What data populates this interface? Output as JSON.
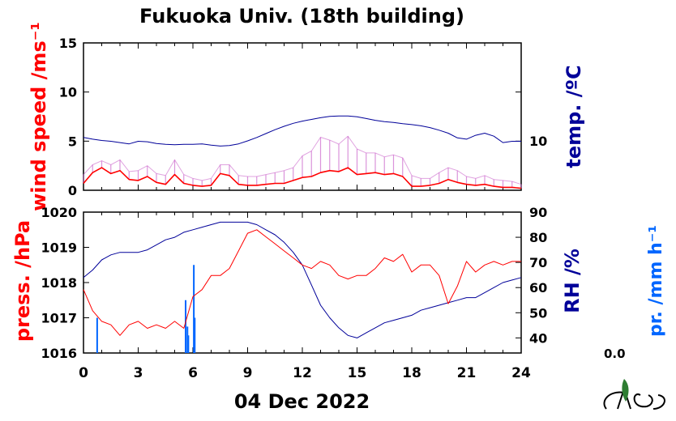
{
  "title": "Fukuoka Univ. (18th building)",
  "date": "04 Dec 2022",
  "precip_current": "0.0",
  "colors": {
    "wind": "#ff0000",
    "wind_gust": "#cc66cc",
    "temperature": "#000099",
    "pressure": "#ff0000",
    "humidity": "#000099",
    "precipitation": "#0066ff"
  },
  "chart_data": [
    {
      "type": "line",
      "xlim": [
        0,
        24
      ],
      "x_ticks": [
        "0",
        "3",
        "6",
        "9",
        "12",
        "15",
        "18",
        "21",
        "24"
      ],
      "ylabel_left": "wind speed /ms⁻¹",
      "ylabel_right": "temp. /ºC",
      "ylim_left": [
        0,
        15
      ],
      "yticks_left": [
        "0",
        "5",
        "10",
        "15"
      ],
      "yticks_right": [
        "10"
      ],
      "series": [
        {
          "role": "temperature",
          "x": [
            0,
            0.5,
            1,
            1.5,
            2,
            2.5,
            3,
            3.5,
            4,
            4.5,
            5,
            5.5,
            6,
            6.5,
            7,
            7.5,
            8,
            8.5,
            9,
            9.5,
            10,
            10.5,
            11,
            11.5,
            12,
            12.5,
            13,
            13.5,
            14,
            14.5,
            15,
            15.5,
            16,
            16.5,
            17,
            17.5,
            18,
            18.5,
            19,
            19.5,
            20,
            20.5,
            21,
            21.5,
            22,
            22.5,
            23,
            23.5,
            24
          ],
          "y": [
            10.8,
            10.4,
            10.1,
            9.9,
            9.6,
            9.3,
            9.9,
            9.8,
            9.4,
            9.2,
            9.1,
            9.2,
            9.2,
            9.3,
            9.0,
            8.8,
            8.9,
            9.3,
            10.0,
            10.8,
            11.7,
            12.6,
            13.4,
            14.1,
            14.6,
            15.0,
            15.4,
            15.7,
            15.8,
            15.8,
            15.6,
            15.2,
            14.8,
            14.5,
            14.3,
            14.0,
            13.8,
            13.5,
            13.1,
            12.5,
            11.8,
            10.7,
            10.4,
            11.3,
            11.8,
            11.1,
            9.6,
            9.9,
            9.9
          ]
        },
        {
          "role": "wind_gust",
          "x": [
            0,
            0.5,
            1,
            1.5,
            2,
            2.5,
            3,
            3.5,
            4,
            4.5,
            5,
            5.5,
            6,
            6.5,
            7,
            7.5,
            8,
            8.5,
            9,
            9.5,
            10,
            10.5,
            11,
            11.5,
            12,
            12.5,
            13,
            13.5,
            14,
            14.5,
            15,
            15.5,
            16,
            16.5,
            17,
            17.5,
            18,
            18.5,
            19,
            19.5,
            20,
            20.5,
            21,
            21.5,
            22,
            22.5,
            23,
            23.5,
            24
          ],
          "y": [
            1.6,
            2.6,
            3.0,
            2.6,
            3.1,
            1.9,
            2.0,
            2.5,
            1.7,
            1.5,
            3.1,
            1.6,
            1.2,
            1.0,
            1.2,
            2.6,
            2.6,
            1.5,
            1.4,
            1.4,
            1.6,
            1.8,
            2.0,
            2.3,
            3.5,
            4.0,
            5.4,
            5.1,
            4.7,
            5.5,
            4.2,
            3.8,
            3.8,
            3.4,
            3.6,
            3.3,
            1.5,
            1.2,
            1.2,
            1.8,
            2.3,
            2.0,
            1.4,
            1.2,
            1.5,
            1.1,
            1.0,
            0.9,
            0.6
          ]
        },
        {
          "role": "wind",
          "x": [
            0,
            0.5,
            1,
            1.5,
            2,
            2.5,
            3,
            3.5,
            4,
            4.5,
            5,
            5.5,
            6,
            6.5,
            7,
            7.5,
            8,
            8.5,
            9,
            9.5,
            10,
            10.5,
            11,
            11.5,
            12,
            12.5,
            13,
            13.5,
            14,
            14.5,
            15,
            15.5,
            16,
            16.5,
            17,
            17.5,
            18,
            18.5,
            19,
            19.5,
            20,
            20.5,
            21,
            21.5,
            22,
            22.5,
            23,
            23.5,
            24
          ],
          "y": [
            0.7,
            1.8,
            2.3,
            1.7,
            2.0,
            1.1,
            1.0,
            1.4,
            0.8,
            0.6,
            1.6,
            0.7,
            0.5,
            0.4,
            0.5,
            1.7,
            1.5,
            0.6,
            0.5,
            0.5,
            0.6,
            0.7,
            0.7,
            1.0,
            1.3,
            1.4,
            1.8,
            2.0,
            1.9,
            2.3,
            1.6,
            1.7,
            1.8,
            1.6,
            1.7,
            1.4,
            0.4,
            0.4,
            0.5,
            0.7,
            1.1,
            0.8,
            0.6,
            0.5,
            0.6,
            0.4,
            0.3,
            0.3,
            0.2
          ]
        }
      ]
    },
    {
      "type": "line",
      "xlim": [
        0,
        24
      ],
      "x_ticks": [
        "0",
        "3",
        "6",
        "9",
        "12",
        "15",
        "18",
        "21",
        "24"
      ],
      "ylabel_left": "press. /hPa",
      "ylabel_right": "RH /%",
      "ylabel_right2": "pr. /mm h⁻¹",
      "ylim_left": [
        1016,
        1020
      ],
      "yticks_left": [
        "1016",
        "1017",
        "1018",
        "1019",
        "1020"
      ],
      "ylim_right": [
        34,
        90
      ],
      "yticks_right": [
        "40",
        "50",
        "60",
        "70",
        "80",
        "90"
      ],
      "series": [
        {
          "role": "pressure",
          "x": [
            0,
            0.5,
            1,
            1.5,
            2,
            2.5,
            3,
            3.5,
            4,
            4.5,
            5,
            5.5,
            6,
            6.5,
            7,
            7.5,
            8,
            8.5,
            9,
            9.5,
            10,
            10.5,
            11,
            11.5,
            12,
            12.5,
            13,
            13.5,
            14,
            14.5,
            15,
            15.5,
            16,
            16.5,
            17,
            17.5,
            18,
            18.5,
            19,
            19.5,
            20,
            20.5,
            21,
            21.5,
            22,
            22.5,
            23,
            23.5,
            24
          ],
          "y": [
            1017.8,
            1017.2,
            1016.9,
            1016.8,
            1016.5,
            1016.8,
            1016.9,
            1016.7,
            1016.8,
            1016.7,
            1016.9,
            1016.7,
            1017.6,
            1017.8,
            1018.2,
            1018.2,
            1018.4,
            1018.9,
            1019.4,
            1019.5,
            1019.3,
            1019.1,
            1018.9,
            1018.7,
            1018.5,
            1018.4,
            1018.6,
            1018.5,
            1018.2,
            1018.1,
            1018.2,
            1018.2,
            1018.4,
            1018.7,
            1018.6,
            1018.8,
            1018.3,
            1018.5,
            1018.5,
            1018.2,
            1017.4,
            1017.9,
            1018.6,
            1018.3,
            1018.5,
            1018.6,
            1018.5,
            1018.6,
            1018.6
          ]
        },
        {
          "role": "humidity",
          "x": [
            0,
            0.5,
            1,
            1.5,
            2,
            2.5,
            3,
            3.5,
            4,
            4.5,
            5,
            5.5,
            6,
            6.5,
            7,
            7.5,
            8,
            8.5,
            9,
            9.5,
            10,
            10.5,
            11,
            11.5,
            12,
            12.5,
            13,
            13.5,
            14,
            14.5,
            15,
            15.5,
            16,
            16.5,
            17,
            17.5,
            18,
            18.5,
            19,
            19.5,
            20,
            20.5,
            21,
            21.5,
            22,
            22.5,
            23,
            23.5,
            24
          ],
          "y": [
            64,
            67,
            71,
            73,
            74,
            74,
            74,
            75,
            77,
            79,
            80,
            82,
            83,
            84,
            85,
            86,
            86,
            86,
            86,
            85,
            83,
            81,
            78,
            74,
            69,
            61,
            53,
            48,
            44,
            41,
            40,
            42,
            44,
            46,
            47,
            48,
            49,
            51,
            52,
            53,
            54,
            55,
            56,
            56,
            58,
            60,
            62,
            63,
            64
          ]
        },
        {
          "role": "precipitation",
          "x": [
            0.75,
            5.6,
            5.7,
            5.75,
            6.05,
            6.1
          ],
          "y": [
            8,
            12,
            6,
            4,
            20,
            8
          ],
          "ylim": [
            0,
            32
          ]
        }
      ]
    }
  ]
}
